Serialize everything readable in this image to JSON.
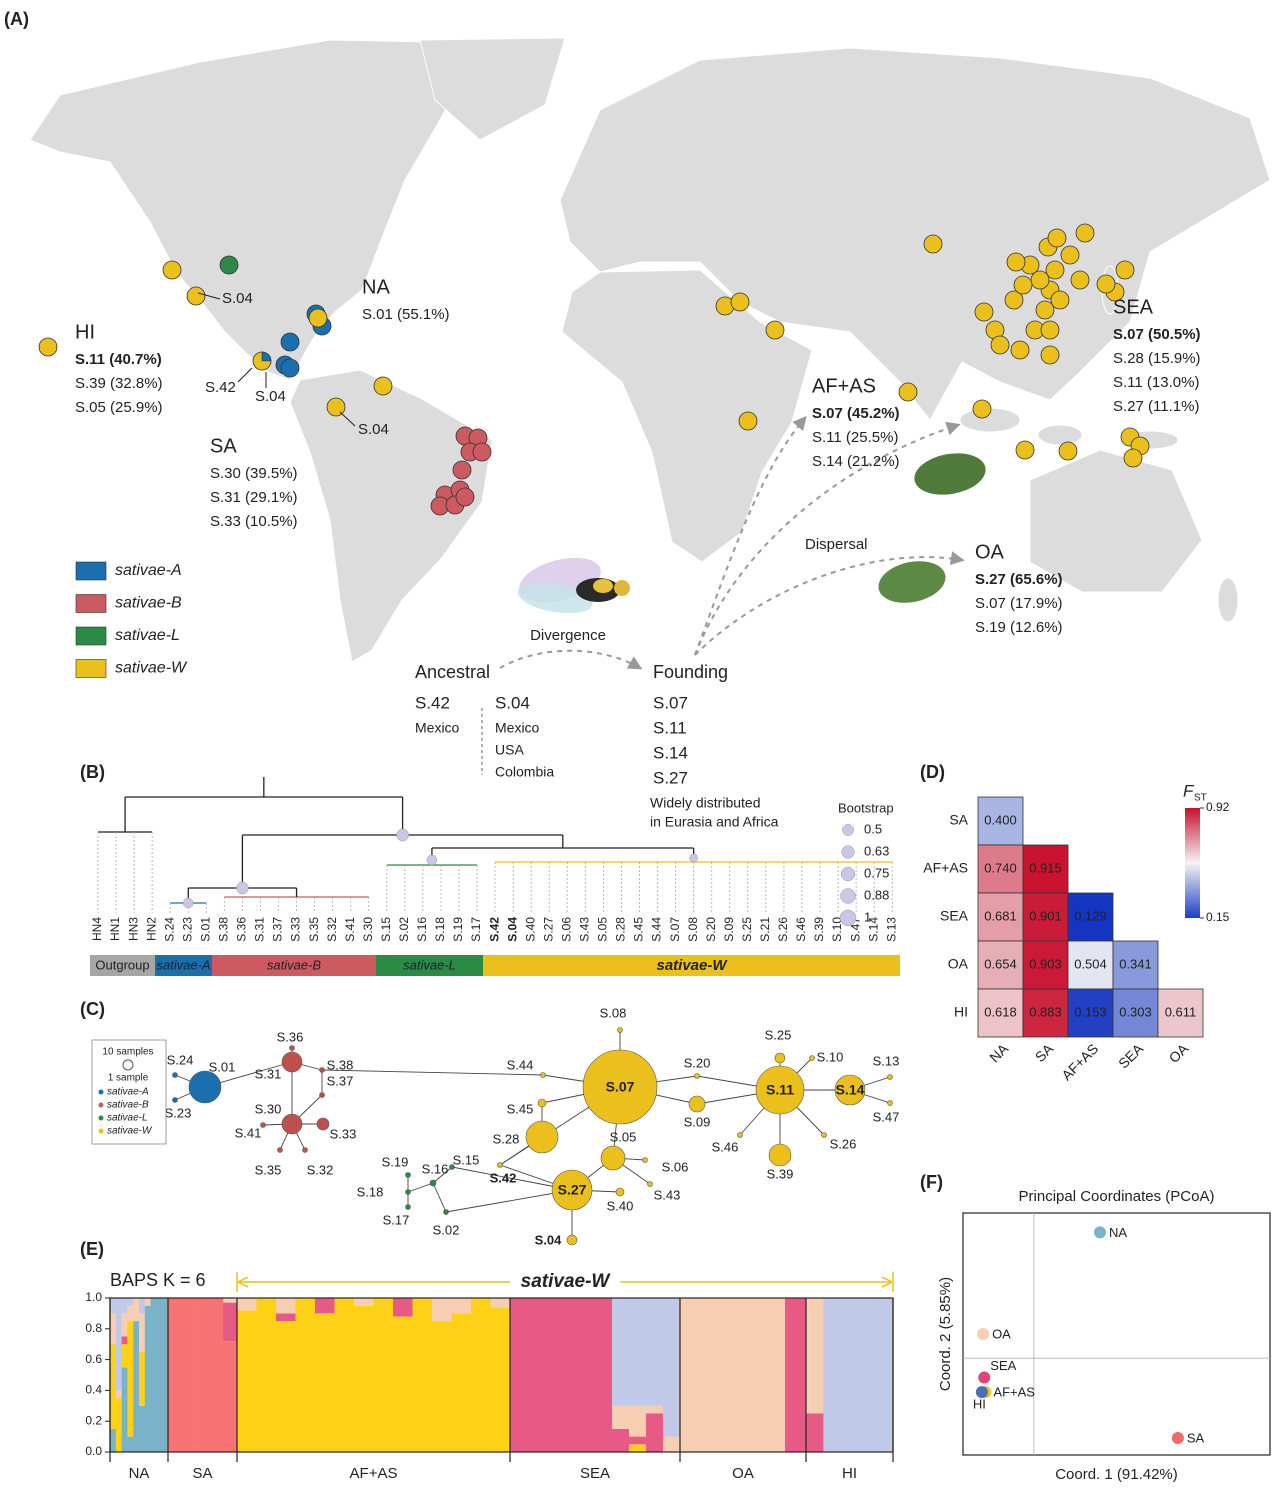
{
  "panels": {
    "A": "(A)",
    "B": "(B)",
    "C": "(C)",
    "D": "(D)",
    "E": "(E)",
    "F": "(F)"
  },
  "map": {
    "regions": [
      {
        "name": "NA",
        "color": "#1f78b4",
        "lines": [
          "S.01 (55.1%)"
        ]
      },
      {
        "name": "HI",
        "color": "#f0b323",
        "lines": [
          "S.11 (40.7%)",
          "S.39 (32.8%)",
          "S.05 (25.9%)"
        ]
      },
      {
        "name": "SA",
        "color": "#cd5c5c",
        "lines": [
          "S.30 (39.5%)",
          "S.31 (29.1%)",
          "S.33 (10.5%)"
        ]
      },
      {
        "name": "AF+AS",
        "color": "#f0b323",
        "lines": [
          "S.07 (45.2%)",
          "S.11 (25.5%)",
          "S.14 (21.2%)"
        ]
      },
      {
        "name": "SEA",
        "color": "#f0b323",
        "lines": [
          "S.07 (50.5%)",
          "S.28 (15.9%)",
          "S.11 (13.0%)",
          "S.27 (11.1%)"
        ]
      },
      {
        "name": "OA",
        "color": "#f0b323",
        "lines": [
          "S.27 (65.6%)",
          "S.07 (17.9%)",
          "S.19 (12.6%)"
        ]
      }
    ],
    "pointers": [
      "S.04",
      "S.42",
      "S.04",
      "S.04"
    ],
    "legend": [
      {
        "name": "sativae-A",
        "color": "#1a6fae"
      },
      {
        "name": "sativae-B",
        "color": "#cc5a60"
      },
      {
        "name": "sativae-L",
        "color": "#2b8a46"
      },
      {
        "name": "sativae-W",
        "color": "#ecc01c"
      }
    ],
    "divergence": "Divergence",
    "dispersal": "Dispersal",
    "ancestral": {
      "title": "Ancestral",
      "haplotypes": [
        {
          "name": "S.42",
          "places": [
            "Mexico"
          ]
        },
        {
          "name": "S.04",
          "places": [
            "Mexico",
            "USA",
            "Colombia"
          ]
        }
      ]
    },
    "founding": {
      "title": "Founding",
      "haplotypes": [
        "S.07",
        "S.11",
        "S.14",
        "S.27"
      ],
      "note": [
        "Widely distributed",
        "in Eurasia and Africa"
      ]
    }
  },
  "tree": {
    "tips": [
      "HN4",
      "HN1",
      "HN3",
      "HN2",
      "S.24",
      "S.23",
      "S.01",
      "S.38",
      "S.36",
      "S.31",
      "S.37",
      "S.33",
      "S.35",
      "S.32",
      "S.41",
      "S.30",
      "S.15",
      "S.02",
      "S.16",
      "S.18",
      "S.19",
      "S.17",
      "S.42",
      "S.04",
      "S.40",
      "S.27",
      "S.06",
      "S.43",
      "S.05",
      "S.28",
      "S.45",
      "S.44",
      "S.07",
      "S.08",
      "S.20",
      "S.09",
      "S.25",
      "S.21",
      "S.26",
      "S.46",
      "S.39",
      "S.10",
      "S.47",
      "S.14",
      "S.13"
    ],
    "highlight_color": "#c0391b",
    "clades": [
      {
        "name": "Outgroup",
        "color": "#a6a6a6"
      },
      {
        "name": "sativae-A",
        "color": "#1a6fae"
      },
      {
        "name": "sativae-B",
        "color": "#cc5a60"
      },
      {
        "name": "sativae-L",
        "color": "#2b8a46"
      },
      {
        "name": "sativae-W",
        "color": "#ecc01c"
      }
    ],
    "bootstrap": {
      "title": "Bootstrap",
      "values": [
        0.5,
        0.63,
        0.75,
        0.88,
        1
      ]
    }
  },
  "network": {
    "legend_sizes": [
      "10 samples",
      "1 sample"
    ],
    "nodes": [
      {
        "label": "S.01",
        "color": "#1a6fae"
      },
      {
        "label": "S.24",
        "color": "#1a6fae"
      },
      {
        "label": "S.23",
        "color": "#1a6fae"
      },
      {
        "label": "S.36",
        "color": "#c0504d"
      },
      {
        "label": "S.31",
        "color": "#c0504d"
      },
      {
        "label": "S.38",
        "color": "#c0504d"
      },
      {
        "label": "S.37",
        "color": "#c0504d"
      },
      {
        "label": "S.30",
        "color": "#c0504d"
      },
      {
        "label": "S.33",
        "color": "#c0504d"
      },
      {
        "label": "S.41",
        "color": "#c0504d"
      },
      {
        "label": "S.35",
        "color": "#c0504d"
      },
      {
        "label": "S.32",
        "color": "#c0504d"
      },
      {
        "label": "S.07",
        "color": "#ecc01c"
      },
      {
        "label": "S.44",
        "color": "#ecc01c"
      },
      {
        "label": "S.45",
        "color": "#ecc01c"
      },
      {
        "label": "S.28",
        "color": "#ecc01c"
      },
      {
        "label": "S.08",
        "color": "#ecc01c"
      },
      {
        "label": "S.05",
        "color": "#ecc01c"
      },
      {
        "label": "S.06",
        "color": "#ecc01c"
      },
      {
        "label": "S.43",
        "color": "#ecc01c"
      },
      {
        "label": "S.27",
        "color": "#ecc01c"
      },
      {
        "label": "S.40",
        "color": "#ecc01c"
      },
      {
        "label": "S.42",
        "color": "#ecc01c"
      },
      {
        "label": "S.04",
        "color": "#ecc01c"
      },
      {
        "label": "S.20",
        "color": "#ecc01c"
      },
      {
        "label": "S.09",
        "color": "#ecc01c"
      },
      {
        "label": "S.11",
        "color": "#ecc01c"
      },
      {
        "label": "S.25",
        "color": "#ecc01c"
      },
      {
        "label": "S.10",
        "color": "#ecc01c"
      },
      {
        "label": "S.14",
        "color": "#ecc01c"
      },
      {
        "label": "S.13",
        "color": "#ecc01c"
      },
      {
        "label": "S.47",
        "color": "#ecc01c"
      },
      {
        "label": "S.39",
        "color": "#ecc01c"
      },
      {
        "label": "S.26",
        "color": "#ecc01c"
      },
      {
        "label": "S.46",
        "color": "#ecc01c"
      },
      {
        "label": "S.19",
        "color": "#2b8a46"
      },
      {
        "label": "S.16",
        "color": "#2b8a46"
      },
      {
        "label": "S.15",
        "color": "#2b8a46"
      },
      {
        "label": "S.18",
        "color": "#2b8a46"
      },
      {
        "label": "S.17",
        "color": "#2b8a46"
      },
      {
        "label": "S.02",
        "color": "#2b8a46"
      }
    ]
  },
  "chart_data": [
    {
      "type": "heatmap",
      "title": "F",
      "title_subscript": "ST",
      "rows": [
        "SA",
        "AF+AS",
        "SEA",
        "OA",
        "HI"
      ],
      "columns": [
        "NA",
        "SA",
        "AF+AS",
        "SEA",
        "OA"
      ],
      "values": [
        [
          0.4
        ],
        [
          0.74,
          0.915
        ],
        [
          0.681,
          0.901,
          0.129
        ],
        [
          0.654,
          0.903,
          0.504,
          0.341
        ],
        [
          0.618,
          0.883,
          0.153,
          0.303,
          0.611
        ]
      ],
      "value_labels": [
        [
          "0.400"
        ],
        [
          "0.740",
          "0.915"
        ],
        [
          "0.681",
          "0.901",
          "0.129"
        ],
        [
          "0.654",
          "0.903",
          "0.504",
          "0.341"
        ],
        [
          "0.618",
          "0.883",
          "0.153",
          "0.303",
          "0.611"
        ]
      ],
      "zlim": [
        0.15,
        0.92
      ],
      "zticks": [
        0.15,
        0.92
      ],
      "colors": [
        "#1f3fc4",
        "#f4f4f4",
        "#c8102e"
      ]
    },
    {
      "type": "stacked_bar",
      "title": "BAPS K = 6",
      "annotation": "sativae-W",
      "colors": [
        "#7ab3c7",
        "#f87474",
        "#fcd116",
        "#e85a86",
        "#f6ceb2",
        "#c1c9e8"
      ],
      "ylim": [
        0,
        1
      ],
      "yticks": [
        {
          "value": 0,
          "label": "0.0"
        },
        0.2,
        0.4,
        0.6,
        0.8,
        {
          "value": 1,
          "label": "1.0"
        }
      ],
      "groups": [
        {
          "name": "NA",
          "bars": [
            [
              0.15,
              0,
              0.55,
              0,
              0.2,
              0.1
            ],
            [
              0,
              0,
              0.35,
              0,
              0.05,
              0.6
            ],
            [
              0.55,
              0,
              0.15,
              0.05,
              0.15,
              0.1
            ],
            [
              0.1,
              0,
              0.75,
              0,
              0.1,
              0.05
            ],
            [
              0.85,
              0,
              0,
              0,
              0.15,
              0
            ],
            [
              0.3,
              0,
              0.35,
              0,
              0.25,
              0.1
            ],
            [
              0.95,
              0,
              0,
              0,
              0.05,
              0
            ],
            [
              1,
              0,
              0,
              0,
              0,
              0
            ],
            [
              1,
              0,
              0,
              0,
              0,
              0
            ],
            [
              1,
              0,
              0,
              0,
              0,
              0
            ]
          ]
        },
        {
          "name": "SA",
          "bars": [
            [
              0,
              1,
              0,
              0,
              0,
              0
            ],
            [
              0,
              1,
              0,
              0,
              0,
              0
            ],
            [
              0,
              1,
              0,
              0,
              0,
              0
            ],
            [
              0,
              1,
              0,
              0,
              0,
              0
            ],
            [
              0,
              0.72,
              0,
              0.25,
              0.03,
              0
            ]
          ]
        },
        {
          "name": "AF+AS",
          "bars": [
            [
              0,
              0,
              0.92,
              0,
              0.08,
              0
            ],
            [
              0,
              0,
              1,
              0,
              0,
              0
            ],
            [
              0,
              0,
              0.85,
              0.05,
              0.1,
              0
            ],
            [
              0,
              0,
              1,
              0,
              0,
              0
            ],
            [
              0,
              0,
              0.9,
              0.1,
              0,
              0
            ],
            [
              0,
              0,
              1,
              0,
              0,
              0
            ],
            [
              0,
              0,
              0.95,
              0,
              0.05,
              0
            ],
            [
              0,
              0,
              1,
              0,
              0,
              0
            ],
            [
              0,
              0,
              0.88,
              0.12,
              0,
              0
            ],
            [
              0,
              0,
              1,
              0,
              0,
              0
            ],
            [
              0,
              0,
              0.85,
              0,
              0.15,
              0
            ],
            [
              0,
              0,
              0.9,
              0,
              0.1,
              0
            ],
            [
              0,
              0,
              1,
              0,
              0,
              0
            ],
            [
              0,
              0,
              0.94,
              0,
              0.06,
              0
            ]
          ]
        },
        {
          "name": "SEA",
          "bars": [
            [
              0,
              0,
              0,
              1,
              0,
              0
            ],
            [
              0,
              0,
              0,
              1,
              0,
              0
            ],
            [
              0,
              0,
              0,
              1,
              0,
              0
            ],
            [
              0,
              0,
              0,
              1,
              0,
              0
            ],
            [
              0,
              0,
              0,
              1,
              0,
              0
            ],
            [
              0,
              0,
              0,
              1,
              0,
              0
            ],
            [
              0,
              0,
              0,
              0.15,
              0.15,
              0.7
            ],
            [
              0,
              0,
              0.05,
              0.05,
              0.2,
              0.7
            ],
            [
              0,
              0,
              0,
              0.25,
              0.05,
              0.7
            ],
            [
              0,
              0,
              0,
              0,
              0.1,
              0.9
            ]
          ]
        },
        {
          "name": "OA",
          "bars": [
            [
              0,
              0,
              0,
              0,
              1,
              0
            ],
            [
              0,
              0,
              0,
              0,
              1,
              0
            ],
            [
              0,
              0,
              0,
              0,
              1,
              0
            ],
            [
              0,
              0,
              0,
              0,
              1,
              0
            ],
            [
              0,
              0,
              0,
              0,
              1,
              0
            ],
            [
              0,
              0,
              0,
              1,
              0,
              0
            ]
          ]
        },
        {
          "name": "HI",
          "bars": [
            [
              0,
              0,
              0,
              0.25,
              0.75,
              0
            ],
            [
              0,
              0,
              0,
              0,
              0,
              1
            ],
            [
              0,
              0,
              0,
              0,
              0,
              1
            ],
            [
              0,
              0,
              0,
              0,
              0,
              1
            ],
            [
              0,
              0,
              0,
              0,
              0,
              1
            ]
          ]
        }
      ]
    },
    {
      "type": "scatter",
      "title": "Principal Coordinates (PCoA)",
      "xlabel": "Coord. 1 (91.42%)",
      "ylabel": "Coord. 2 (5.85%)",
      "xlim": [
        -0.3,
        1.0
      ],
      "ylim": [
        -0.4,
        0.6
      ],
      "series": [
        {
          "name": "NA",
          "color": "#7ab3c7",
          "x": [
            0.28
          ],
          "values": [
            0.52
          ]
        },
        {
          "name": "OA",
          "color": "#f6ceb2",
          "x": [
            -0.215
          ],
          "values": [
            0.1
          ]
        },
        {
          "name": "SEA",
          "color": "#e0457a",
          "x": [
            -0.21
          ],
          "values": [
            -0.08
          ]
        },
        {
          "name": "AF+AS",
          "color": "#f3c21c",
          "x": [
            -0.205
          ],
          "values": [
            -0.14
          ]
        },
        {
          "name": "HI",
          "color": "#4a6fb5",
          "x": [
            -0.22
          ],
          "values": [
            -0.14
          ]
        },
        {
          "name": "SA",
          "color": "#f06a6a",
          "x": [
            0.61
          ],
          "values": [
            -0.33
          ]
        }
      ]
    }
  ]
}
